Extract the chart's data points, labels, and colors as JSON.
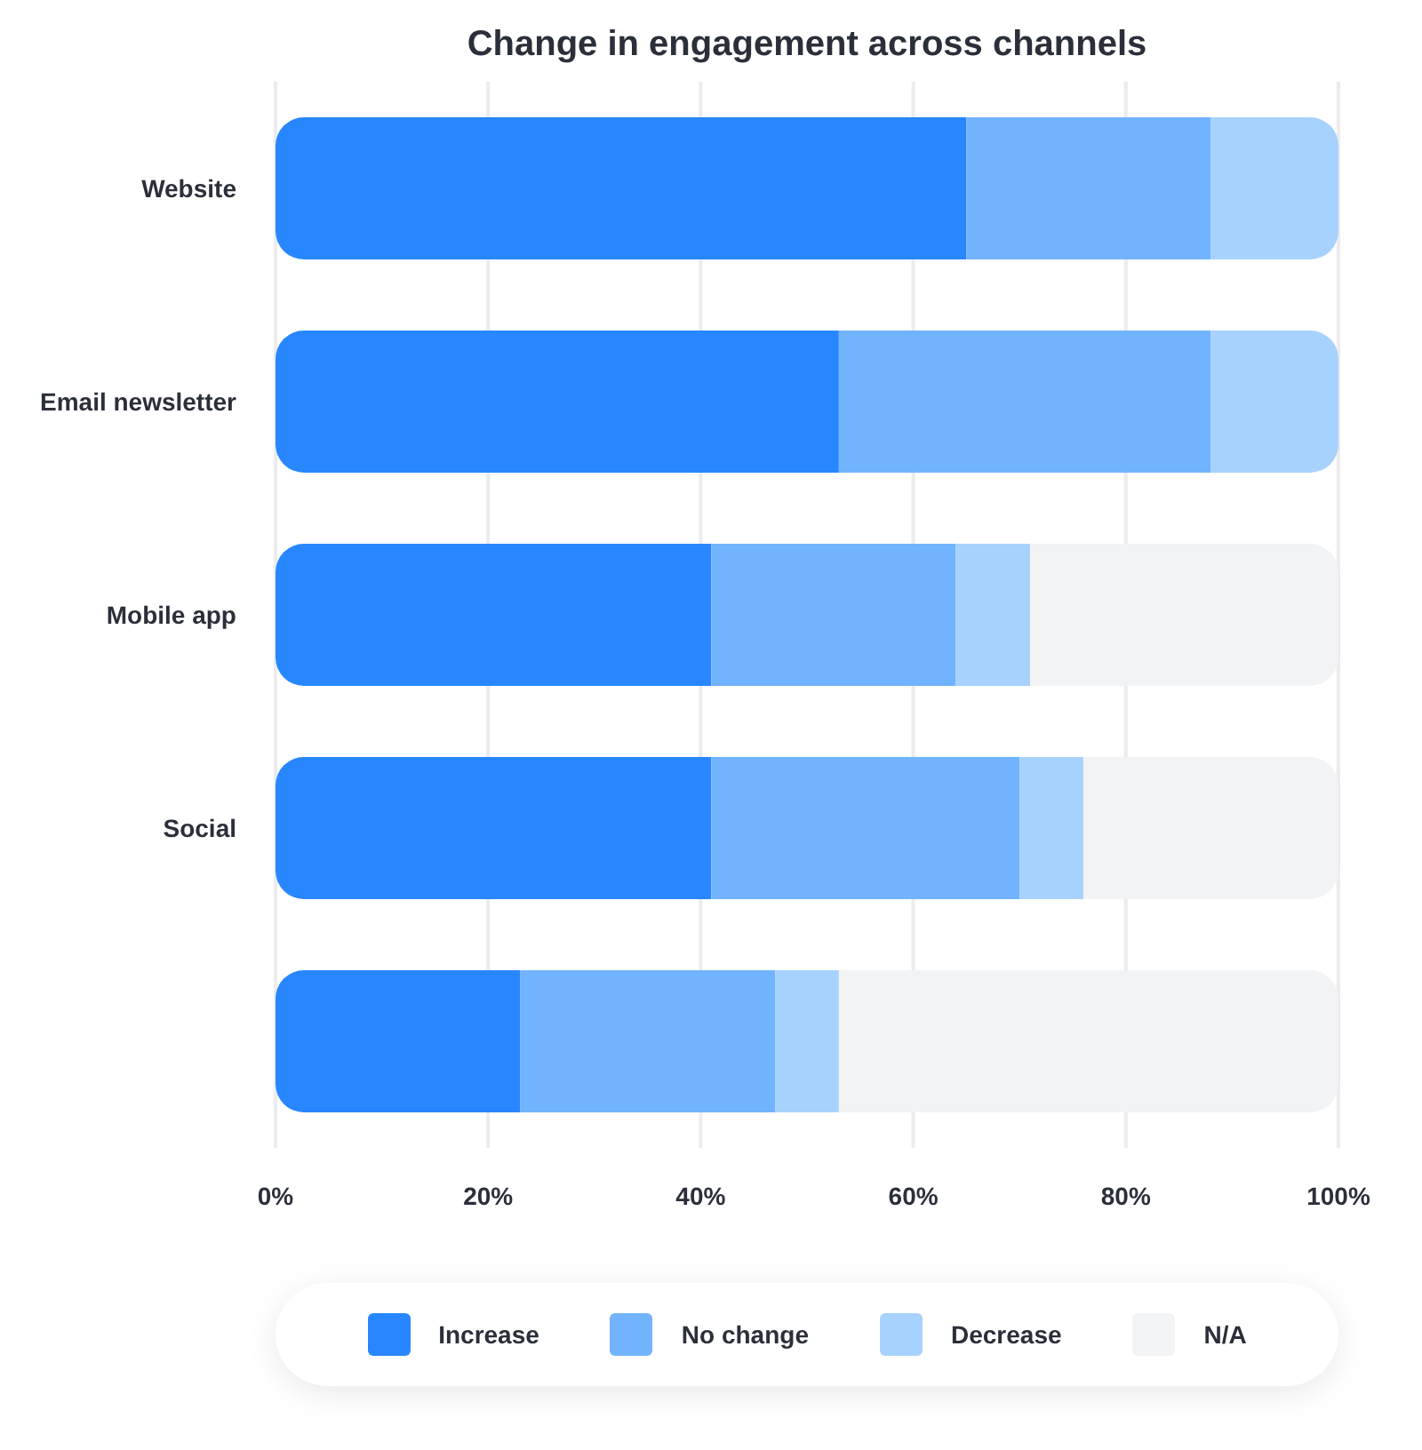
{
  "chart_data": {
    "type": "bar",
    "orientation": "horizontal",
    "stacked": true,
    "title": "Change in engagement across channels",
    "categories": [
      "Website",
      "Email newsletter",
      "Mobile app",
      "Social",
      null
    ],
    "series": [
      {
        "name": "Increase",
        "color": "#2887ff",
        "values": [
          65,
          53,
          41,
          41,
          23
        ]
      },
      {
        "name": "No change",
        "color": "#71b4fd",
        "values": [
          23,
          35,
          23,
          29,
          24
        ]
      },
      {
        "name": "Decrease",
        "color": "#a8d2fe",
        "values": [
          12,
          12,
          7,
          6,
          6
        ]
      },
      {
        "name": "N/A",
        "color": "#f2f3f5",
        "values": [
          0,
          0,
          29,
          24,
          47
        ]
      }
    ],
    "xlim": [
      0,
      100
    ],
    "xticks": [
      {
        "value": 0,
        "label": "0%"
      },
      {
        "value": 20,
        "label": "20%"
      },
      {
        "value": 40,
        "label": "40%"
      },
      {
        "value": 60,
        "label": "60%"
      },
      {
        "value": 80,
        "label": "80%"
      },
      {
        "value": 100,
        "label": "100%"
      }
    ],
    "grid": "x",
    "legend": "bottom"
  }
}
